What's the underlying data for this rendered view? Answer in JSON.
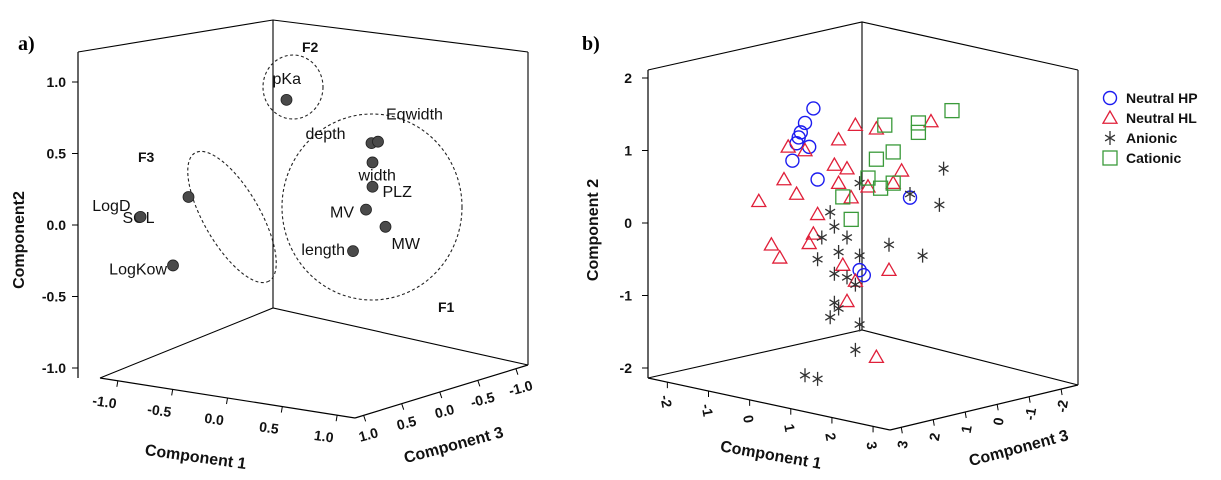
{
  "colors": {
    "neutral_hp": "#1c1cf0",
    "neutral_hl": "#e0203a",
    "anionic": "#333333",
    "cationic": "#3a9a3a",
    "loading_point": "#4a4a4a"
  },
  "chart_data": [
    {
      "panel": "a)",
      "type": "scatter",
      "xlabel": "Component 1",
      "ylabel": "Component2",
      "zlabel": "Component 3",
      "xlim": [
        -1.0,
        1.0
      ],
      "ylim": [
        -1.0,
        1.0
      ],
      "zlim": [
        -1.0,
        1.0
      ],
      "x_ticks": [
        "-1.0",
        "-0.5",
        "0.0",
        "0.5",
        "1.0"
      ],
      "y_ticks": [
        "1.0",
        "0.5",
        "0.0",
        "-0.5",
        "-1.0"
      ],
      "z_ticks": [
        "1.0",
        "0.5",
        "0.0",
        "-0.5",
        "-1.0"
      ],
      "points": [
        {
          "label": "pKa",
          "x": 0.05,
          "y": 0.85,
          "z": -0.2
        },
        {
          "label": "depth",
          "x": 0.75,
          "y": 0.56,
          "z": -0.1
        },
        {
          "label": "Eqwidth",
          "x": 0.8,
          "y": 0.57,
          "z": -0.1
        },
        {
          "label": "width",
          "x": 0.85,
          "y": 0.45,
          "z": 0.1
        },
        {
          "label": "SOL",
          "x": -0.45,
          "y": 0.24,
          "z": 0.35
        },
        {
          "label": "PLZ",
          "x": 0.85,
          "y": 0.28,
          "z": 0.1
        },
        {
          "label": "MV",
          "x": 0.8,
          "y": 0.12,
          "z": 0.1
        },
        {
          "label": "LogD",
          "x": -0.75,
          "y": 0.12,
          "z": 0.5
        },
        {
          "label": "MW",
          "x": 0.95,
          "y": 0.0,
          "z": 0.1
        },
        {
          "label": "length",
          "x": 0.7,
          "y": -0.17,
          "z": 0.1
        },
        {
          "label": "LogKow",
          "x": -0.5,
          "y": -0.22,
          "z": 0.5
        }
      ],
      "factor_groups": [
        {
          "name": "F1",
          "members": [
            "depth",
            "Eqwidth",
            "width",
            "PLZ",
            "MV",
            "MW",
            "length"
          ]
        },
        {
          "name": "F2",
          "members": [
            "pKa"
          ]
        },
        {
          "name": "F3",
          "members": [
            "SOL",
            "LogD",
            "LogKow"
          ]
        }
      ]
    },
    {
      "panel": "b)",
      "type": "scatter",
      "xlabel": "Component 1",
      "ylabel": "Component 2",
      "zlabel": "Component 3",
      "xlim": [
        -2,
        3
      ],
      "ylim": [
        -2,
        2
      ],
      "zlim": [
        -2,
        3
      ],
      "x_ticks": [
        "-2",
        "-1",
        "0",
        "1",
        "2",
        "3"
      ],
      "y_ticks": [
        "2",
        "1",
        "0",
        "-1",
        "-2"
      ],
      "z_ticks": [
        "3",
        "2",
        "1",
        "0",
        "-1",
        "-2"
      ],
      "legend_position": "top-right",
      "series": [
        {
          "name": "Neutral HP",
          "marker": "circle",
          "points": [
            [
              -0.3,
              1.58
            ],
            [
              -0.5,
              1.38
            ],
            [
              -0.6,
              1.25
            ],
            [
              -0.65,
              1.18
            ],
            [
              -0.7,
              1.1
            ],
            [
              -0.4,
              1.05
            ],
            [
              -0.8,
              0.86
            ],
            [
              -0.2,
              0.6
            ],
            [
              2.0,
              0.35
            ],
            [
              0.8,
              -0.65
            ],
            [
              0.9,
              -0.72
            ]
          ]
        },
        {
          "name": "Neutral HL",
          "marker": "triangle",
          "points": [
            [
              -0.9,
              1.05
            ],
            [
              -0.5,
              1.0
            ],
            [
              0.3,
              1.15
            ],
            [
              0.7,
              1.35
            ],
            [
              1.2,
              1.3
            ],
            [
              2.5,
              1.4
            ],
            [
              0.2,
              0.8
            ],
            [
              0.5,
              0.75
            ],
            [
              1.8,
              0.72
            ],
            [
              -1.0,
              0.6
            ],
            [
              0.3,
              0.55
            ],
            [
              1.0,
              0.5
            ],
            [
              1.6,
              0.55
            ],
            [
              -0.7,
              0.4
            ],
            [
              -1.6,
              0.3
            ],
            [
              0.6,
              0.35
            ],
            [
              -0.2,
              0.12
            ],
            [
              -0.3,
              -0.15
            ],
            [
              -0.4,
              -0.28
            ],
            [
              -1.3,
              -0.3
            ],
            [
              -1.1,
              -0.48
            ],
            [
              0.4,
              -0.58
            ],
            [
              0.7,
              -0.8
            ],
            [
              1.5,
              -0.65
            ],
            [
              0.5,
              -1.08
            ],
            [
              1.2,
              -1.85
            ]
          ]
        },
        {
          "name": "Anionic",
          "marker": "star",
          "points": [
            [
              0.8,
              0.55
            ],
            [
              2.0,
              0.4
            ],
            [
              2.8,
              0.75
            ],
            [
              2.7,
              0.25
            ],
            [
              0.1,
              0.15
            ],
            [
              0.2,
              -0.05
            ],
            [
              -0.1,
              -0.2
            ],
            [
              0.5,
              -0.2
            ],
            [
              1.5,
              -0.3
            ],
            [
              2.3,
              -0.45
            ],
            [
              0.3,
              -0.4
            ],
            [
              0.8,
              -0.45
            ],
            [
              -0.2,
              -0.5
            ],
            [
              0.2,
              -0.7
            ],
            [
              0.5,
              -0.75
            ],
            [
              0.7,
              -0.85
            ],
            [
              0.2,
              -1.1
            ],
            [
              0.3,
              -1.18
            ],
            [
              0.1,
              -1.3
            ],
            [
              0.8,
              -1.4
            ],
            [
              0.7,
              -1.75
            ],
            [
              -0.5,
              -2.1
            ],
            [
              -0.2,
              -2.15
            ]
          ]
        },
        {
          "name": "Cationic",
          "marker": "square",
          "points": [
            [
              1.4,
              1.35
            ],
            [
              2.2,
              1.38
            ],
            [
              3.0,
              1.55
            ],
            [
              2.2,
              1.25
            ],
            [
              1.6,
              0.98
            ],
            [
              1.2,
              0.88
            ],
            [
              1.0,
              0.62
            ],
            [
              1.3,
              0.48
            ],
            [
              1.6,
              0.55
            ],
            [
              0.4,
              0.36
            ],
            [
              0.6,
              0.05
            ]
          ]
        }
      ]
    }
  ],
  "panel_a": {
    "panel_label": "a)",
    "y_axis_title": "Component2",
    "x_axis_title": "Component 1",
    "z_axis_title": "Component 3",
    "factor_labels": {
      "f1": "F1",
      "f2": "F2",
      "f3": "F3"
    }
  },
  "panel_b": {
    "panel_label": "b)",
    "y_axis_title": "Component 2",
    "x_axis_title": "Component 1",
    "z_axis_title": "Component 3",
    "legend": [
      "Neutral HP",
      "Neutral HL",
      "Anionic",
      "Cationic"
    ]
  }
}
